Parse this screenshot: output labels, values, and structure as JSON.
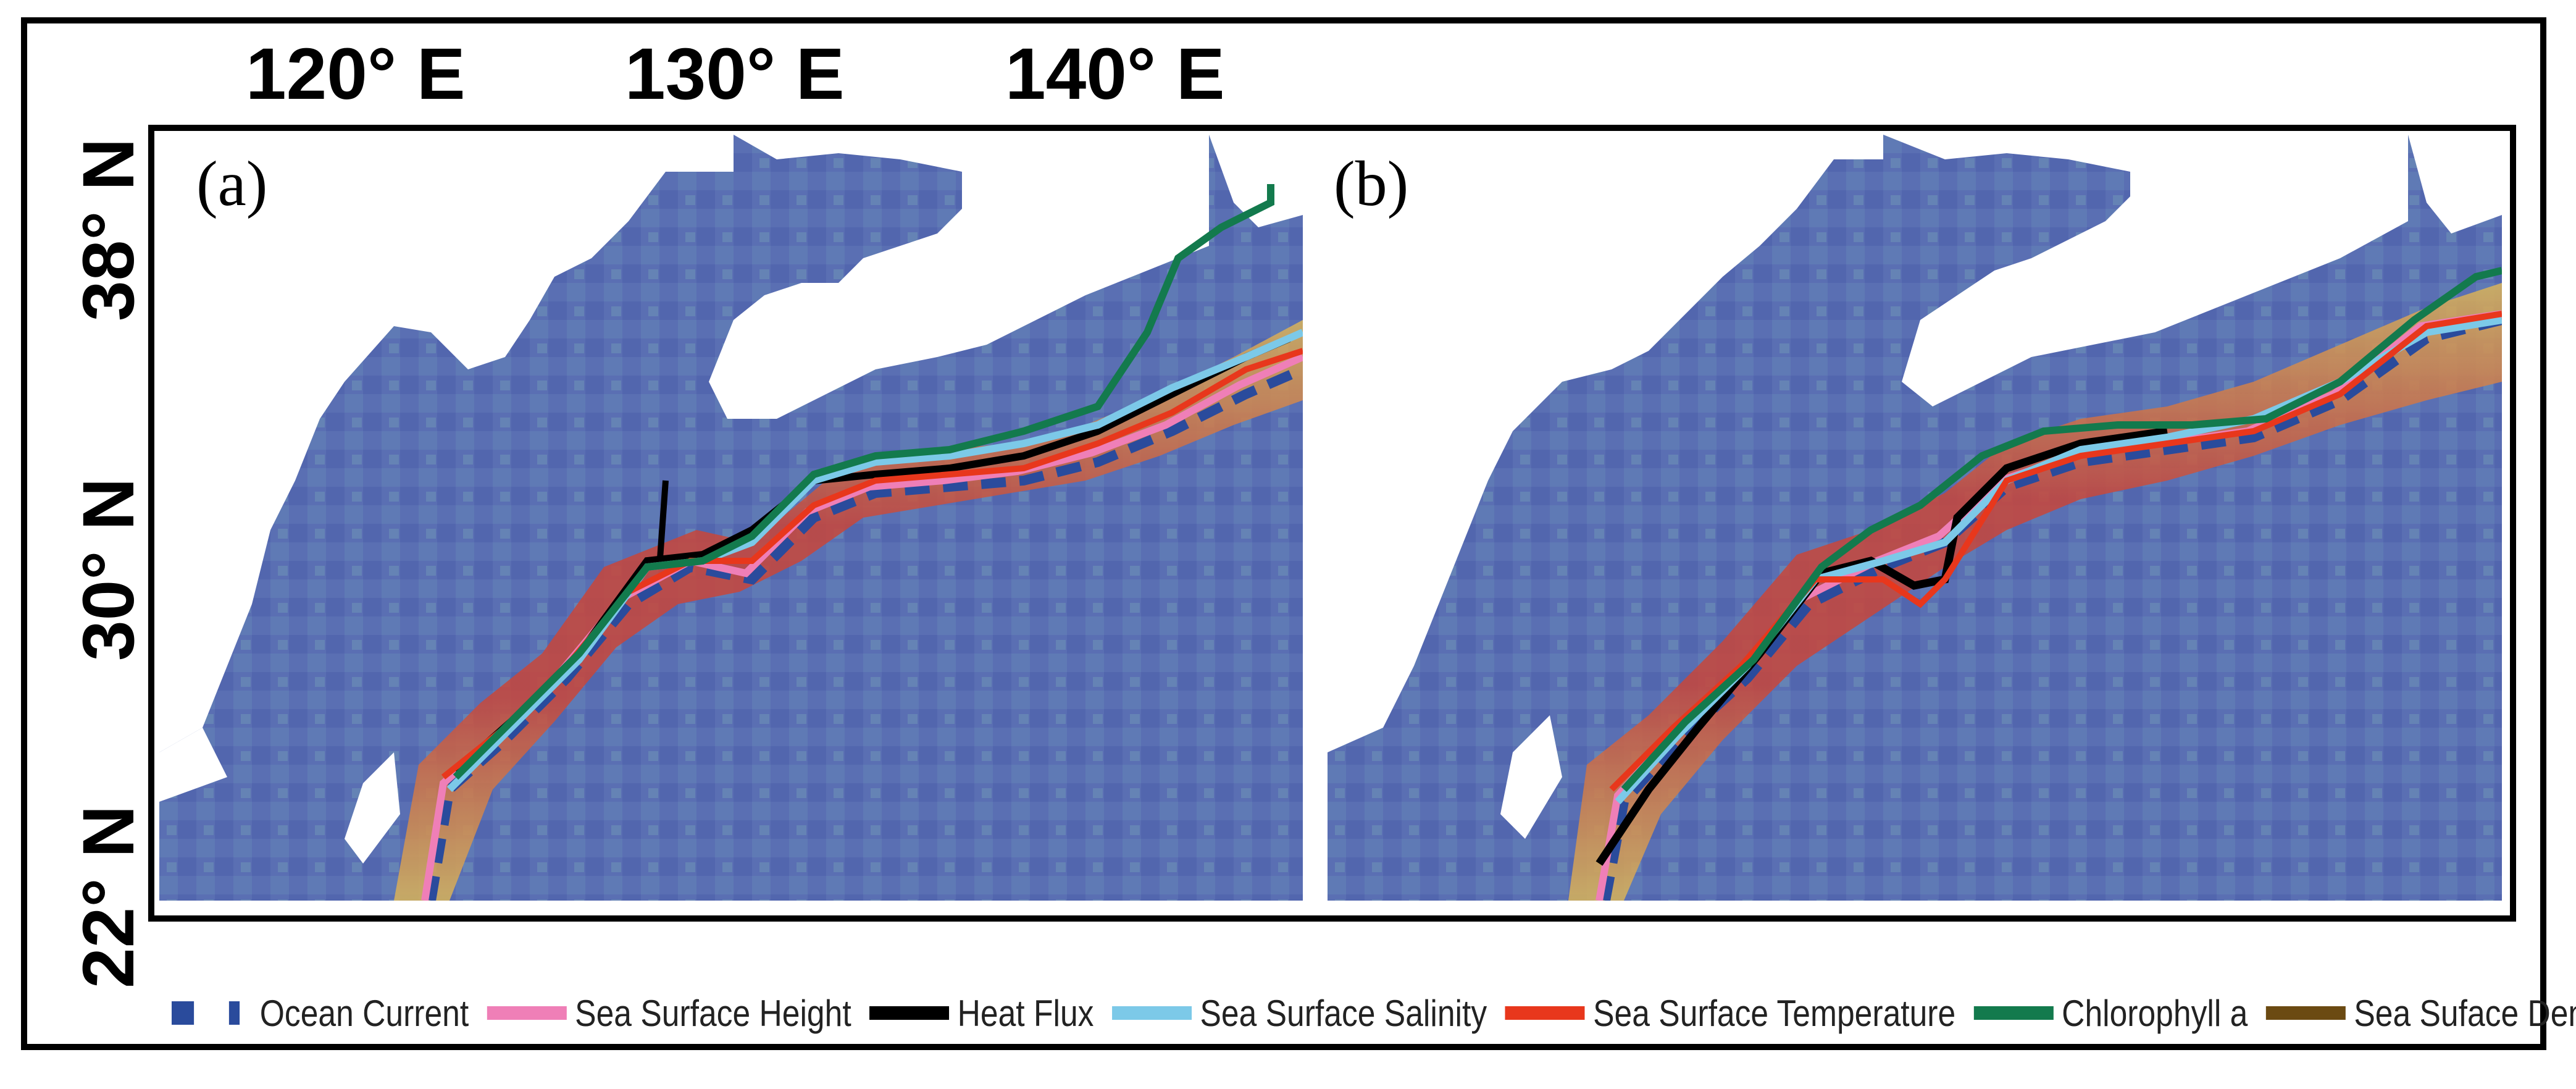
{
  "figure": {
    "lon_labels": [
      "120° E",
      "130° E",
      "140° E"
    ],
    "lat_labels": [
      "38° N",
      "30° N",
      "22° N"
    ]
  },
  "panels": [
    {
      "label": "(a)"
    },
    {
      "label": "(b)"
    }
  ],
  "legend": [
    {
      "label": "Ocean Current",
      "color": "#2a4b9c",
      "style": "dashed"
    },
    {
      "label": "Sea Surface Height",
      "color": "#ef7fb7",
      "style": "solid"
    },
    {
      "label": "Heat Flux",
      "color": "#000000",
      "style": "solid"
    },
    {
      "label": "Sea Surface Salinity",
      "color": "#7cc9e8",
      "style": "solid"
    },
    {
      "label": "Sea Surface Temperature",
      "color": "#e8371c",
      "style": "solid"
    },
    {
      "label": "Chlorophyll a",
      "color": "#137a4d",
      "style": "solid"
    },
    {
      "label": "Sea Suface Density",
      "color": "#6b4a12",
      "style": "solid"
    }
  ]
}
